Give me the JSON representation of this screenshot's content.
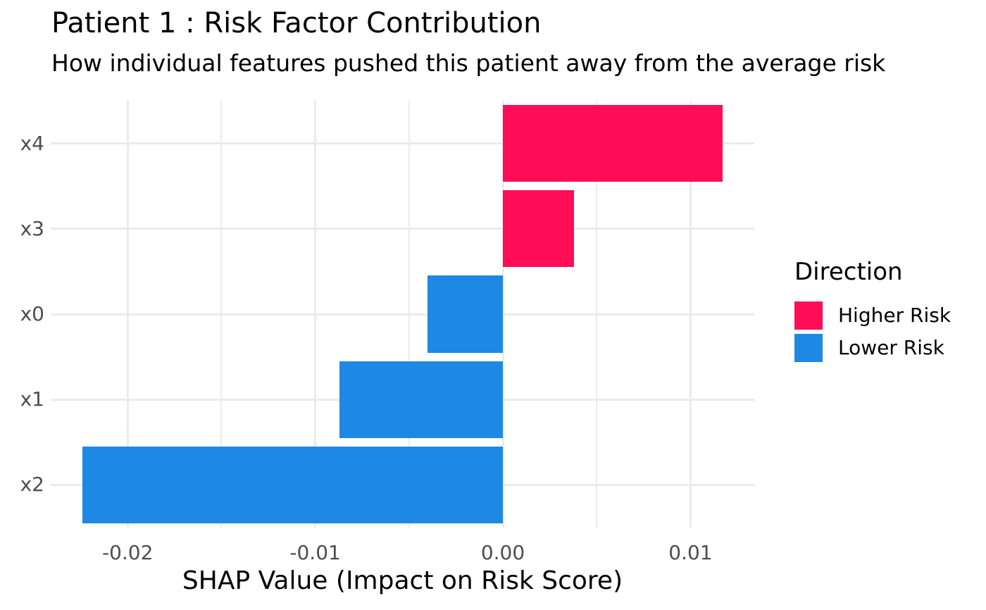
{
  "chart_data": {
    "type": "bar",
    "orientation": "horizontal",
    "title": "Patient 1 : Risk Factor Contribution",
    "subtitle": "How individual features pushed this patient away from the average risk",
    "categories": [
      "x4",
      "x3",
      "x0",
      "x1",
      "x2"
    ],
    "values": [
      0.0117,
      0.0038,
      -0.004,
      -0.0087,
      -0.0224
    ],
    "xlabel": "SHAP Value (Impact on Risk Score)",
    "ylabel": "",
    "xlim": [
      -0.0241,
      0.0134
    ],
    "x_major_ticks": [
      -0.02,
      -0.01,
      0,
      0.01
    ],
    "x_tick_labels": [
      "-0.02",
      "-0.01",
      "0.00",
      "0.01"
    ],
    "x_minor_ticks": [
      -0.015,
      -0.005,
      0.005
    ],
    "bar_width_fraction": 0.9,
    "grid": "on",
    "legend_position": "right",
    "color_rule": "positive values Higher Risk pink, negative values Lower Risk blue"
  },
  "legend": {
    "title": "Direction",
    "items": [
      {
        "label": "Higher Risk",
        "color": "#FF0D57"
      },
      {
        "label": "Lower Risk",
        "color": "#1E88E5"
      }
    ]
  },
  "colors": {
    "higher_risk": "#FF0D57",
    "lower_risk": "#1E88E5",
    "grid": "#EBEBEB",
    "tick_text": "#4D4D4D",
    "text": "#000000",
    "background": "#FFFFFF"
  }
}
